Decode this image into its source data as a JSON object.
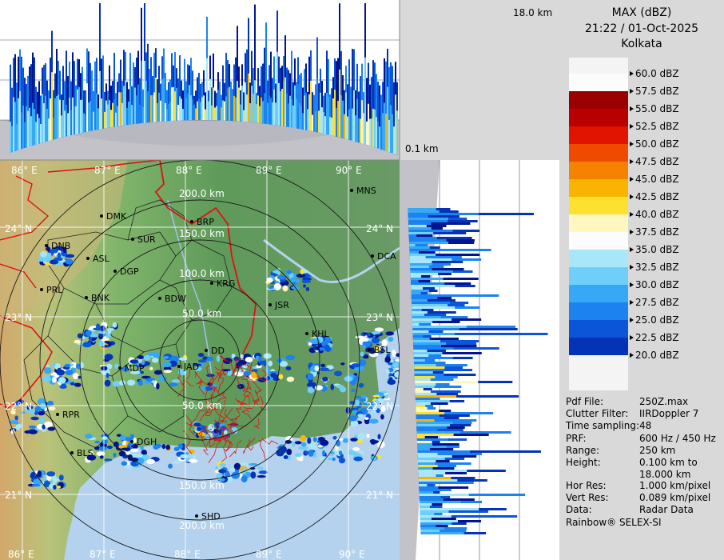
{
  "header": {
    "product": "MAX (dBZ)",
    "datetime": "21:22 / 01-Oct-2025",
    "station": "Kolkata"
  },
  "height_labels": {
    "top": "18.0 km",
    "bottom": "0.1 km"
  },
  "legend": {
    "entries": [
      {
        "label": "60.0 dBZ",
        "color": "#ffffff"
      },
      {
        "label": "57.5 dBZ",
        "color": "#9b0000"
      },
      {
        "label": "55.0 dBZ",
        "color": "#b90000"
      },
      {
        "label": "52.5 dBZ",
        "color": "#e01400"
      },
      {
        "label": "50.0 dBZ",
        "color": "#f04a00"
      },
      {
        "label": "47.5 dBZ",
        "color": "#f58200"
      },
      {
        "label": "45.0 dBZ",
        "color": "#f8b400"
      },
      {
        "label": "42.5 dBZ",
        "color": "#fde030"
      },
      {
        "label": "40.0 dBZ",
        "color": "#fff6c0"
      },
      {
        "label": "37.5 dBZ",
        "color": "#ffffff"
      },
      {
        "label": "35.0 dBZ",
        "color": "#a8e6fa"
      },
      {
        "label": "32.5 dBZ",
        "color": "#6fcff8"
      },
      {
        "label": "30.0 dBZ",
        "color": "#36a8f5"
      },
      {
        "label": "27.5 dBZ",
        "color": "#1c82ef"
      },
      {
        "label": "25.0 dBZ",
        "color": "#0a55d8"
      },
      {
        "label": "22.5 dBZ",
        "color": "#0433b6"
      },
      {
        "label": "20.0 dBZ",
        "color": "#02158e"
      }
    ]
  },
  "info": [
    {
      "key": "Pdf File:",
      "value": "250Z.max"
    },
    {
      "key": "Clutter Filter:",
      "value": "IIRDoppler 7"
    },
    {
      "key": "Time sampling:",
      "value": "48"
    },
    {
      "key": "PRF:",
      "value": "600 Hz / 450 Hz"
    },
    {
      "key": "Range:",
      "value": "250 km"
    },
    {
      "key": "Height:",
      "value": "0.100 km to"
    },
    {
      "key": "",
      "value": "18.000 km"
    },
    {
      "key": "Hor Res:",
      "value": "1.000 km/pixel"
    },
    {
      "key": "Vert Res:",
      "value": "0.089 km/pixel"
    },
    {
      "key": "Data:",
      "value": "Radar Data"
    }
  ],
  "footer": "Rainbow® SELEX-SI",
  "map": {
    "lon_top": [
      "86° E",
      "87° E",
      "88° E",
      "89° E",
      "90° E"
    ],
    "lon_bottom": [
      "86° E",
      "87° E",
      "88° E",
      "89° E",
      "90° E"
    ],
    "lat_left": [
      "24° N",
      "23° N",
      "22° N",
      "21° N"
    ],
    "lat_right": [
      "24° N",
      "23° N",
      "22° N",
      "21° N"
    ],
    "range_rings": [
      "50.0 km",
      "100.0 km",
      "150.0 km",
      "200.0 km",
      "50.0 km",
      "150.0 km",
      "200.0 km"
    ],
    "cities": [
      "MNS",
      "DMK",
      "BRP",
      "SUR",
      "DNB",
      "ASL",
      "DGP",
      "DCA",
      "KRG",
      "PRL",
      "BNK",
      "BDW",
      "JSR",
      "KHL",
      "DD",
      "BSL",
      "MDP",
      "JAD",
      "RPR",
      "DGH",
      "BLS",
      "SHD"
    ]
  }
}
